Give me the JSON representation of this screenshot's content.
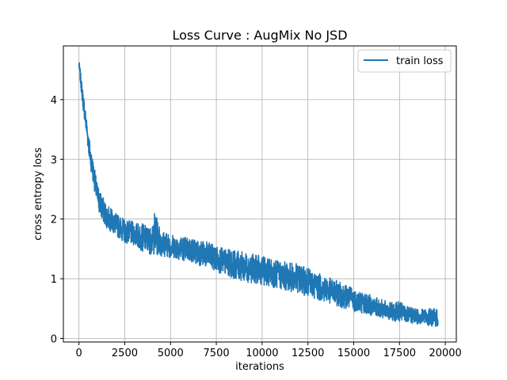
{
  "chart_data": {
    "type": "line",
    "title": "Loss Curve : AugMix No JSD",
    "xlabel": "iterations",
    "ylabel": "cross entropy loss",
    "xlim": [
      -850,
      20600
    ],
    "ylim": [
      -0.06,
      4.9
    ],
    "xticks": [
      0,
      2500,
      5000,
      7500,
      10000,
      12500,
      15000,
      17500,
      20000
    ],
    "yticks": [
      0,
      1,
      2,
      3,
      4
    ],
    "xtick_labels": [
      "0",
      "2500",
      "5000",
      "7500",
      "10000",
      "12500",
      "15000",
      "17500",
      "20000"
    ],
    "ytick_labels": [
      "0",
      "1",
      "2",
      "3",
      "4"
    ],
    "grid": true,
    "legend": "top-right",
    "series": [
      {
        "name": "train loss",
        "color": "#1f77b4",
        "x_range": [
          0,
          19600
        ],
        "upper_envelope": [
          [
            0,
            4.68
          ],
          [
            200,
            4.2
          ],
          [
            400,
            3.75
          ],
          [
            600,
            3.3
          ],
          [
            800,
            2.95
          ],
          [
            1000,
            2.6
          ],
          [
            1200,
            2.45
          ],
          [
            1500,
            2.25
          ],
          [
            2000,
            2.1
          ],
          [
            2500,
            2.0
          ],
          [
            3000,
            1.95
          ],
          [
            3500,
            1.92
          ],
          [
            4000,
            1.85
          ],
          [
            4100,
            2.15
          ],
          [
            4500,
            1.82
          ],
          [
            5000,
            1.75
          ],
          [
            6000,
            1.7
          ],
          [
            7000,
            1.62
          ],
          [
            7500,
            1.55
          ],
          [
            8000,
            1.5
          ],
          [
            9000,
            1.45
          ],
          [
            10000,
            1.38
          ],
          [
            11000,
            1.3
          ],
          [
            12000,
            1.25
          ],
          [
            13000,
            1.1
          ],
          [
            14000,
            0.98
          ],
          [
            15000,
            0.85
          ],
          [
            16000,
            0.72
          ],
          [
            17000,
            0.6
          ],
          [
            17500,
            0.62
          ],
          [
            18000,
            0.52
          ],
          [
            19000,
            0.5
          ],
          [
            19600,
            0.5
          ]
        ],
        "lower_envelope": [
          [
            0,
            4.5
          ],
          [
            200,
            3.9
          ],
          [
            400,
            3.4
          ],
          [
            600,
            2.9
          ],
          [
            800,
            2.55
          ],
          [
            1000,
            2.2
          ],
          [
            1200,
            2.0
          ],
          [
            1500,
            1.85
          ],
          [
            2000,
            1.72
          ],
          [
            2500,
            1.6
          ],
          [
            3000,
            1.55
          ],
          [
            3500,
            1.45
          ],
          [
            4000,
            1.4
          ],
          [
            5000,
            1.35
          ],
          [
            6000,
            1.28
          ],
          [
            7000,
            1.18
          ],
          [
            8000,
            1.05
          ],
          [
            9000,
            0.95
          ],
          [
            10000,
            0.9
          ],
          [
            11000,
            0.82
          ],
          [
            12000,
            0.75
          ],
          [
            13000,
            0.65
          ],
          [
            14000,
            0.55
          ],
          [
            15000,
            0.45
          ],
          [
            16000,
            0.38
          ],
          [
            17000,
            0.3
          ],
          [
            18000,
            0.25
          ],
          [
            19000,
            0.22
          ],
          [
            19600,
            0.18
          ]
        ]
      }
    ]
  }
}
